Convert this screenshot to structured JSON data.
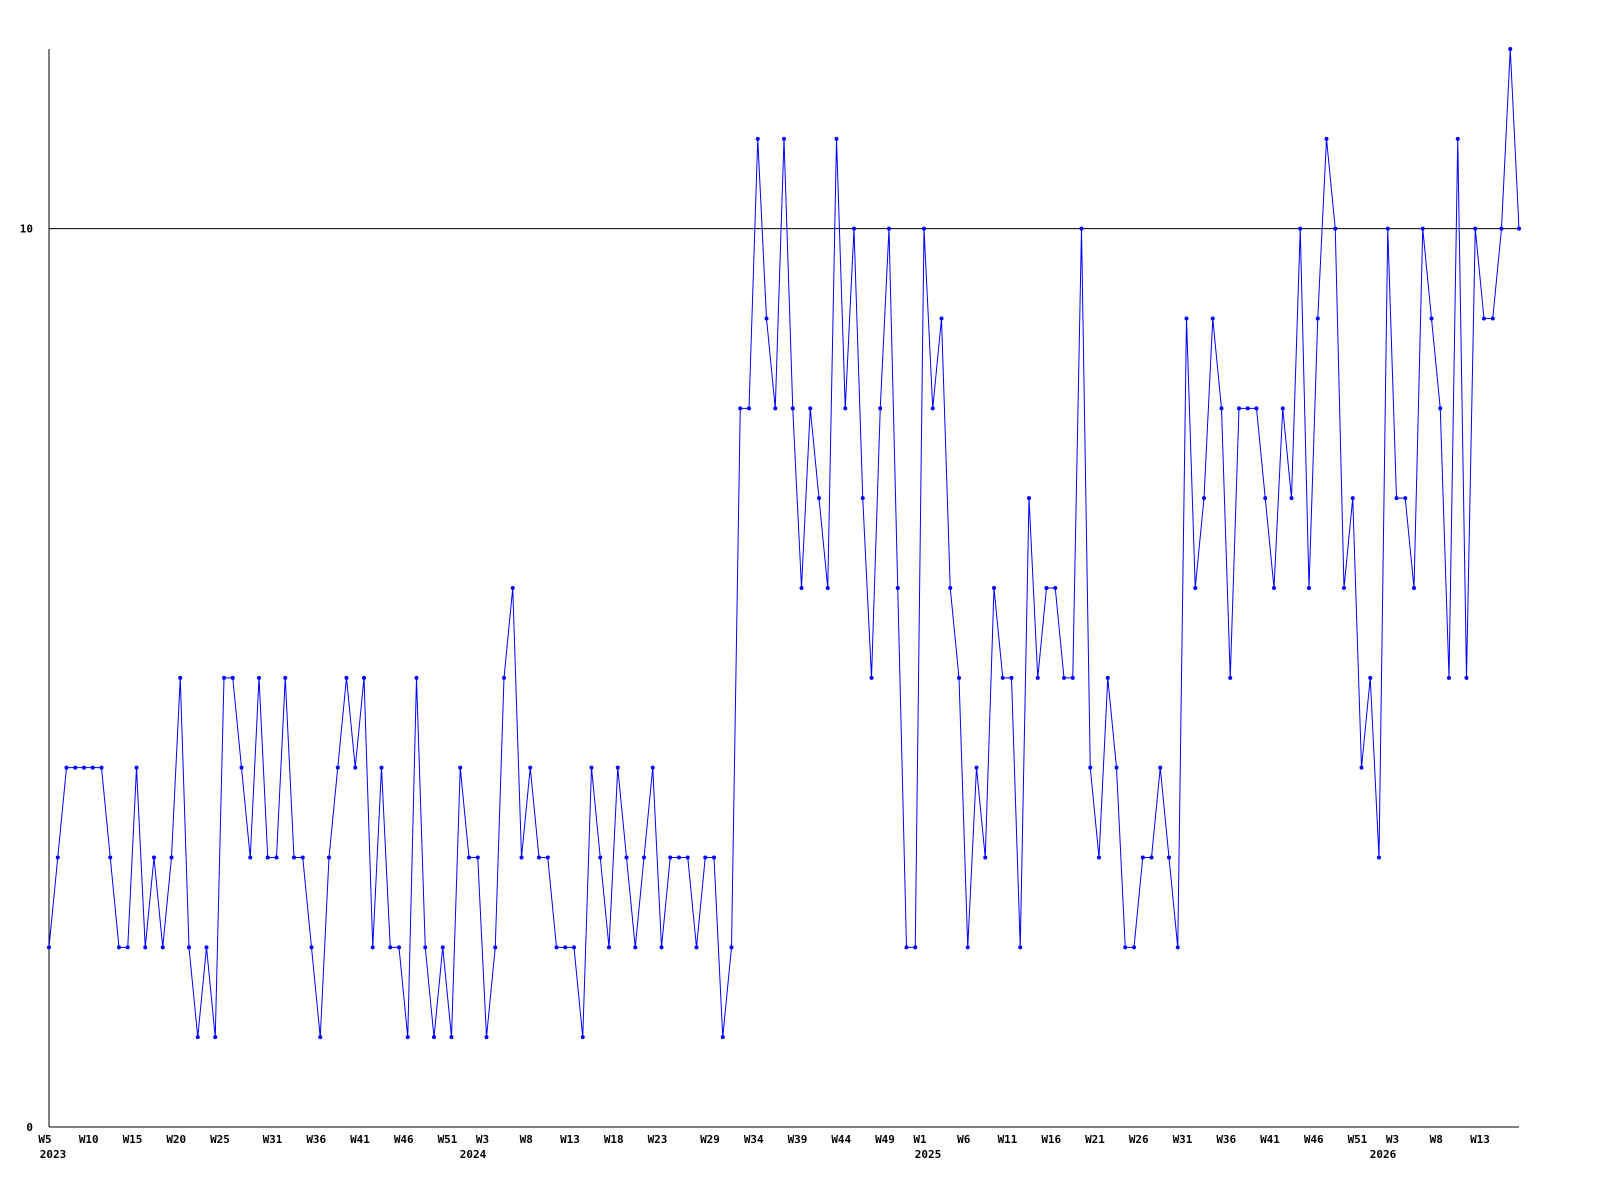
{
  "chart_data": {
    "type": "line",
    "color": "#0000ff",
    "grid": true,
    "ylim": [
      0,
      12
    ],
    "yticks": [
      0,
      10
    ],
    "categories": [
      "W5",
      null,
      null,
      null,
      null,
      "W10",
      null,
      null,
      null,
      null,
      "W15",
      null,
      null,
      null,
      null,
      "W20",
      null,
      null,
      null,
      null,
      "W25",
      null,
      null,
      null,
      null,
      null,
      "W31",
      null,
      null,
      null,
      null,
      "W36",
      null,
      null,
      null,
      null,
      "W41",
      null,
      null,
      null,
      null,
      "W46",
      null,
      null,
      null,
      null,
      "W51",
      null,
      null,
      null,
      "W3",
      null,
      null,
      null,
      null,
      "W8",
      null,
      null,
      null,
      null,
      "W13",
      null,
      null,
      null,
      null,
      "W18",
      null,
      null,
      null,
      null,
      "W23",
      null,
      null,
      null,
      null,
      null,
      "W29",
      null,
      null,
      null,
      null,
      "W34",
      null,
      null,
      null,
      null,
      "W39",
      null,
      null,
      null,
      null,
      "W44",
      null,
      null,
      null,
      null,
      "W49",
      null,
      null,
      null,
      "W1",
      null,
      null,
      null,
      null,
      "W6",
      null,
      null,
      null,
      null,
      "W11",
      null,
      null,
      null,
      null,
      "W16",
      null,
      null,
      null,
      null,
      "W21",
      null,
      null,
      null,
      null,
      "W26",
      null,
      null,
      null,
      null,
      "W31",
      null,
      null,
      null,
      null,
      "W36",
      null,
      null,
      null,
      null,
      "W41",
      null,
      null,
      null,
      null,
      "W46",
      null,
      null,
      null,
      null,
      "W51",
      null,
      null,
      null,
      "W3",
      null,
      null,
      null,
      null,
      "W8",
      null,
      null,
      null,
      null,
      "W13",
      null,
      null,
      null,
      null
    ],
    "years": [
      "2023",
      null,
      null,
      null,
      null,
      null,
      null,
      null,
      null,
      null,
      null,
      null,
      null,
      null,
      null,
      null,
      null,
      null,
      null,
      null,
      null,
      null,
      null,
      null,
      null,
      null,
      null,
      null,
      null,
      null,
      null,
      null,
      null,
      null,
      null,
      null,
      null,
      null,
      null,
      null,
      null,
      null,
      null,
      null,
      null,
      null,
      null,
      null,
      "2024",
      null,
      null,
      null,
      null,
      null,
      null,
      null,
      null,
      null,
      null,
      null,
      null,
      null,
      null,
      null,
      null,
      null,
      null,
      null,
      null,
      null,
      null,
      null,
      null,
      null,
      null,
      null,
      null,
      null,
      null,
      null,
      null,
      null,
      null,
      null,
      null,
      null,
      null,
      null,
      null,
      null,
      null,
      null,
      null,
      null,
      null,
      null,
      null,
      null,
      null,
      null,
      "2025",
      null,
      null,
      null,
      null,
      null,
      null,
      null,
      null,
      null,
      null,
      null,
      null,
      null,
      null,
      null,
      null,
      null,
      null,
      null,
      null,
      null,
      null,
      null,
      null,
      null,
      null,
      null,
      null,
      null,
      null,
      null,
      null,
      null,
      null,
      null,
      null,
      null,
      null,
      null,
      null,
      null,
      null,
      null,
      null,
      null,
      null,
      null,
      null,
      null,
      null,
      null,
      "2026",
      null,
      null,
      null,
      null,
      null,
      null,
      null,
      null,
      null,
      null,
      null,
      null,
      null,
      null,
      null,
      null
    ],
    "values": [
      2,
      3,
      4,
      4,
      4,
      4,
      4,
      3,
      2,
      2,
      4,
      2,
      3,
      2,
      3,
      5,
      2,
      1,
      2,
      1,
      5,
      5,
      4,
      3,
      5,
      3,
      3,
      5,
      3,
      3,
      2,
      1,
      3,
      4,
      5,
      4,
      5,
      2,
      4,
      2,
      2,
      1,
      5,
      2,
      1,
      2,
      1,
      4,
      3,
      3,
      1,
      2,
      5,
      6,
      3,
      4,
      3,
      3,
      2,
      2,
      2,
      1,
      4,
      3,
      2,
      4,
      3,
      2,
      3,
      4,
      2,
      3,
      3,
      3,
      2,
      3,
      3,
      1,
      2,
      8,
      8,
      11,
      9,
      8,
      11,
      8,
      6,
      8,
      7,
      6,
      11,
      8,
      10,
      7,
      5,
      8,
      10,
      6,
      2,
      2,
      10,
      8,
      9,
      6,
      5,
      2,
      4,
      3,
      6,
      5,
      5,
      2,
      7,
      5,
      6,
      6,
      5,
      5,
      10,
      4,
      3,
      5,
      4,
      2,
      2,
      3,
      3,
      4,
      3,
      2,
      9,
      6,
      7,
      9,
      8,
      5,
      8,
      8,
      8,
      7,
      6,
      8,
      7,
      10,
      6,
      9,
      11,
      10,
      6,
      7,
      4,
      5,
      3,
      10,
      7,
      7,
      6,
      10,
      9,
      8,
      5,
      11,
      5,
      10,
      9,
      9,
      10,
      12,
      10
    ]
  }
}
